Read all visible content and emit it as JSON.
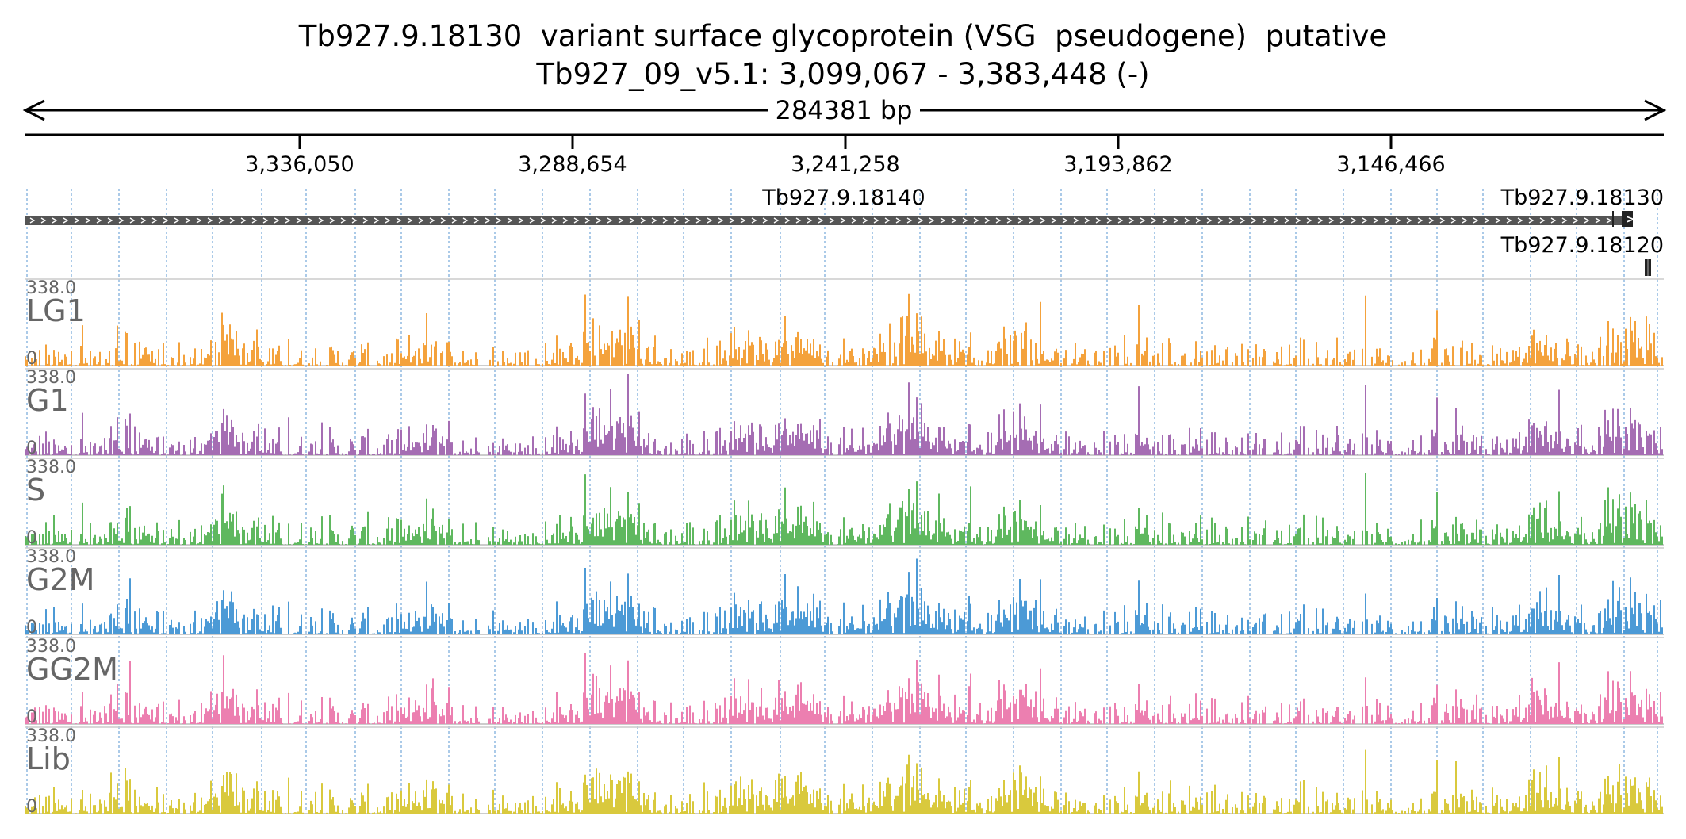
{
  "header": {
    "title": "Tb927.9.18130  variant surface glycoprotein (VSG  pseudogene)  putative",
    "location": "Tb927_09_v5.1: 3,099,067 - 3,383,448 (-)",
    "span_label": "284381 bp"
  },
  "ruler": {
    "ticks": [
      "3,336,050",
      "3,288,654",
      "3,241,258",
      "3,193,862",
      "3,146,466"
    ]
  },
  "genes": [
    {
      "id": "Tb927.9.18140",
      "strand": "-"
    },
    {
      "id": "Tb927.9.18130",
      "strand": "-"
    },
    {
      "id": "Tb927.9.18120",
      "strand": "-"
    }
  ],
  "tracks": [
    {
      "name": "LG1",
      "max_label": "338.0",
      "min_label": "0",
      "color": "#F4A23C"
    },
    {
      "name": "G1",
      "max_label": "338.0",
      "min_label": "0",
      "color": "#A56DB3"
    },
    {
      "name": "S",
      "max_label": "338.0",
      "min_label": "0",
      "color": "#5FB85F"
    },
    {
      "name": "G2M",
      "max_label": "338.0",
      "min_label": "0",
      "color": "#4C9AD6"
    },
    {
      "name": "GG2M",
      "max_label": "338.0",
      "min_label": "0",
      "color": "#EC7FB0"
    },
    {
      "name": "Lib",
      "max_label": "338.0",
      "min_label": "0",
      "color": "#D9C93D"
    }
  ],
  "colors": {
    "gene_bar": "#555555",
    "grid": "#8FB8E0",
    "axis": "#000000",
    "label": "#666666"
  }
}
